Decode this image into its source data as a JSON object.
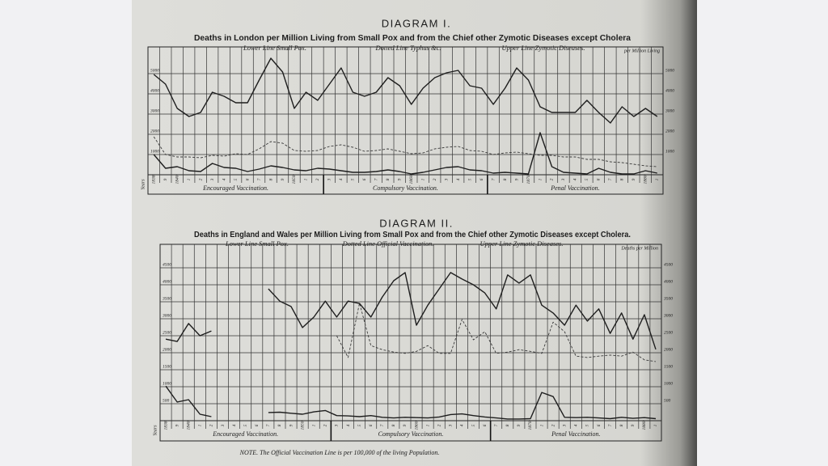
{
  "chart_data": [
    {
      "type": "line",
      "title": "DIAGRAM I.",
      "subtitle": "Deaths in London per Million Living from Small Pox and from the Chief other Zymotic Diseases except Cholera",
      "y_label": "per Million Living",
      "x_label": "Years",
      "periods": [
        "Encouraged Vaccination.",
        "Compulsory Vaccination.",
        "Penal Vaccination."
      ],
      "categories": [
        "1838",
        "9",
        "1840",
        "1",
        "2",
        "3",
        "4",
        "5",
        "6",
        "7",
        "8",
        "9",
        "1850",
        "1",
        "2",
        "3",
        "4",
        "5",
        "6",
        "7",
        "8",
        "9",
        "1860",
        "1",
        "2",
        "3",
        "4",
        "5",
        "6",
        "7",
        "8",
        "9",
        "1870",
        "1",
        "2",
        "3",
        "4",
        "5",
        "6",
        "7",
        "8",
        "9",
        "1880",
        "1"
      ],
      "ylim": [
        0,
        6000
      ],
      "yticks": [
        1000,
        2000,
        3000,
        4000,
        5000
      ],
      "grid": true,
      "series": [
        {
          "name": "Lower Line Small Pox.",
          "color": "#1e1e1e",
          "style": "solid",
          "values": [
            1000,
            320,
            400,
            200,
            160,
            560,
            360,
            320,
            160,
            280,
            440,
            360,
            240,
            200,
            320,
            280,
            200,
            120,
            120,
            160,
            240,
            160,
            40,
            120,
            240,
            360,
            400,
            240,
            200,
            80,
            120,
            80,
            40,
            2080,
            400,
            120,
            80,
            40,
            320,
            120,
            40,
            40,
            200,
            80
          ]
        },
        {
          "name": "Dotted Line Typhus &c.",
          "color": "#3a3a3a",
          "style": "dotted",
          "values": [
            1880,
            1000,
            880,
            880,
            840,
            960,
            920,
            1040,
            1000,
            1280,
            1640,
            1560,
            1200,
            1160,
            1200,
            1400,
            1480,
            1360,
            1160,
            1200,
            1280,
            1160,
            1040,
            1080,
            1280,
            1360,
            1400,
            1200,
            1160,
            1000,
            1080,
            1120,
            1040,
            960,
            960,
            880,
            880,
            760,
            760,
            640,
            600,
            520,
            440,
            400
          ]
        },
        {
          "name": "Upper Line Zymotic Diseases.",
          "color": "#1e1e1e",
          "style": "solid",
          "values": [
            4960,
            4480,
            3280,
            2880,
            3080,
            4080,
            3880,
            3560,
            3560,
            4680,
            5760,
            5080,
            3280,
            4080,
            3680,
            4480,
            5280,
            4080,
            3880,
            4080,
            4800,
            4400,
            3480,
            4280,
            4800,
            5040,
            5160,
            4400,
            4280,
            3480,
            4280,
            5280,
            4680,
            3360,
            3080,
            3080,
            3080,
            3680,
            3080,
            2560,
            3360,
            2880,
            3280,
            2880
          ]
        }
      ]
    },
    {
      "type": "line",
      "title": "DIAGRAM II.",
      "subtitle": "Deaths in England and Wales per Million Living from Small Pox and from the Chief other Zymotic Diseases except Cholera.",
      "y_label": "Deaths per Million",
      "x_label": "Years",
      "periods": [
        "Encouraged Vaccination.",
        "Compulsory Vaccination.",
        "Penal Vaccination."
      ],
      "categories": [
        "1838",
        "9",
        "1840",
        "1",
        "2",
        "3",
        "4",
        "5",
        "6",
        "7",
        "8",
        "9",
        "1850",
        "1",
        "2",
        "3",
        "4",
        "5",
        "6",
        "7",
        "8",
        "9",
        "1860",
        "1",
        "2",
        "3",
        "4",
        "5",
        "6",
        "7",
        "8",
        "9",
        "1870",
        "1",
        "2",
        "3",
        "4",
        "5",
        "6",
        "7",
        "8",
        "9",
        "1880",
        "1"
      ],
      "ylim": [
        0,
        5000
      ],
      "yticks": [
        500,
        1000,
        1500,
        2000,
        2500,
        3000,
        3500,
        4000,
        4500
      ],
      "grid": true,
      "series": [
        {
          "name": "Lower Line Small Pox.",
          "color": "#1e1e1e",
          "style": "solid",
          "values": [
            1020,
            550,
            620,
            190,
            120,
            null,
            null,
            null,
            null,
            240,
            250,
            220,
            190,
            260,
            300,
            150,
            140,
            120,
            150,
            100,
            80,
            100,
            90,
            80,
            110,
            180,
            200,
            150,
            110,
            80,
            50,
            50,
            60,
            830,
            710,
            100,
            90,
            100,
            80,
            60,
            100,
            70,
            90,
            60
          ]
        },
        {
          "name": "Dotted Line Official Vaccination.",
          "color": "#3a3a3a",
          "style": "dotted",
          "values": [
            null,
            null,
            null,
            null,
            null,
            null,
            null,
            null,
            null,
            null,
            null,
            null,
            null,
            null,
            null,
            2500,
            1860,
            3460,
            2210,
            2090,
            2020,
            1980,
            2040,
            2210,
            1980,
            1980,
            2980,
            2380,
            2620,
            1980,
            2020,
            2090,
            2040,
            1980,
            2900,
            2620,
            1900,
            1860,
            1900,
            1930,
            1900,
            2020,
            1790,
            1740
          ]
        },
        {
          "name": "Upper Line Zymotic Diseases.",
          "color": "#1e1e1e",
          "style": "solid",
          "values": [
            2400,
            2330,
            2860,
            2500,
            2640,
            null,
            null,
            null,
            null,
            3880,
            3520,
            3360,
            2740,
            3050,
            3520,
            3050,
            3520,
            3450,
            3050,
            3640,
            4120,
            4360,
            2810,
            3400,
            3880,
            4360,
            4170,
            4000,
            3760,
            3290,
            4290,
            4050,
            4290,
            3400,
            3170,
            2810,
            3400,
            2930,
            3290,
            2570,
            3170,
            2400,
            3120,
            2100
          ]
        }
      ]
    }
  ],
  "note": "NOTE. The Official Vaccination Line is per 100,000 of the living Population."
}
